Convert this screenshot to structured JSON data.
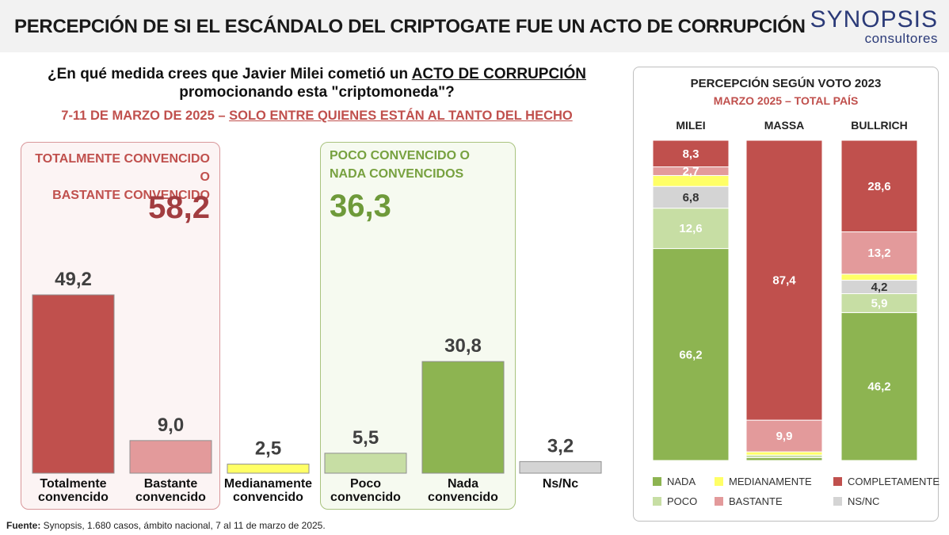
{
  "header": {
    "title": "PERCEPCIÓN DE SI EL ESCÁNDALO DEL CRIPTOGATE FUE UN ACTO DE CORRUPCIÓN",
    "logo_main": "SYNOPSIS",
    "logo_sub": "consultores"
  },
  "question": {
    "line1_pre": "¿En qué medida crees que Javier Milei cometió un ",
    "line1_emph": "ACTO DE CORRUPCIÓN",
    "line2": "promocionando esta \"criptomoneda\"?"
  },
  "subtitle": {
    "pre": "7-11 DE MARZO DE 2025 – ",
    "emph": "SOLO ENTRE QUIENES ESTÁN AL TANTO DEL HECHO"
  },
  "groups": {
    "convinced": {
      "label_line1": "TOTALMENTE CONVENCIDO O",
      "label_line2": "BASTANTE CONVENCIDO",
      "total": "58,2"
    },
    "not_convinced": {
      "label_line1": "POCO CONVENCIDO O",
      "label_line2": "NADA CONVENCIDOS",
      "total": "36,3"
    }
  },
  "source": {
    "label": "Fuente:",
    "text": " Synopsis, 1.680 casos, ámbito nacional, 7 al 11 de marzo de 2025."
  },
  "right_panel": {
    "title": "PERCEPCIÓN SEGÚN VOTO 2023",
    "subtitle": "MARZO 2025 – TOTAL PAÍS"
  },
  "colors": {
    "completamente": "#c0504d",
    "bastante": "#e39a9b",
    "medianamente": "#ffff66",
    "poco": "#c7dea4",
    "nada": "#8db451",
    "nsnc": "#d4d4d4"
  },
  "chart_data": [
    {
      "type": "bar",
      "title": "¿En qué medida crees que Javier Milei cometió un ACTO DE CORRUPCIÓN promocionando esta \"criptomoneda\"?",
      "categories": [
        [
          "Totalmente",
          "convencido"
        ],
        [
          "Bastante",
          "convencido"
        ],
        [
          "Medianamente",
          "convencido"
        ],
        [
          "Poco",
          "convencido"
        ],
        [
          "Nada",
          "convencido"
        ],
        [
          "Ns/Nc"
        ]
      ],
      "values": [
        49.2,
        9.0,
        2.5,
        5.5,
        30.8,
        3.2
      ],
      "labels": [
        "49,2",
        "9,0",
        "2,5",
        "5,5",
        "30,8",
        "3,2"
      ],
      "bar_colors": [
        "completamente",
        "bastante",
        "medianamente",
        "poco",
        "nada",
        "nsnc"
      ],
      "ylim": [
        0,
        50
      ]
    },
    {
      "type": "bar",
      "stacked": true,
      "orientation": "vertical",
      "title": "PERCEPCIÓN SEGÚN VOTO 2023",
      "categories": [
        "MILEI",
        "MASSA",
        "BULLRICH"
      ],
      "series": [
        {
          "name": "NADA",
          "key": "nada",
          "values": [
            66.2,
            0.9,
            46.2
          ],
          "labels": [
            "66,2",
            "",
            "46,2"
          ]
        },
        {
          "name": "POCO",
          "key": "poco",
          "values": [
            12.6,
            0.8,
            5.9
          ],
          "labels": [
            "12,6",
            "",
            "5,9"
          ]
        },
        {
          "name": "NS/NC",
          "key": "nsnc",
          "values": [
            6.8,
            0.0,
            4.2
          ],
          "labels": [
            "6,8",
            "",
            "4,2"
          ]
        },
        {
          "name": "MEDIANAMENTE",
          "key": "medianamente",
          "values": [
            3.4,
            1.0,
            1.9
          ],
          "labels": [
            "",
            "",
            ""
          ]
        },
        {
          "name": "BASTANTE",
          "key": "bastante",
          "values": [
            2.7,
            9.9,
            13.2
          ],
          "labels": [
            "2,7",
            "9,9",
            "13,2"
          ]
        },
        {
          "name": "COMPLETAMENTE",
          "key": "completamente",
          "values": [
            8.3,
            87.4,
            28.6
          ],
          "labels": [
            "8,3",
            "87,4",
            "28,6"
          ]
        }
      ],
      "ylim": [
        0,
        100
      ],
      "legend": [
        {
          "name": "NADA",
          "key": "nada"
        },
        {
          "name": "MEDIANAMENTE",
          "key": "medianamente"
        },
        {
          "name": "COMPLETAMENTE",
          "key": "completamente"
        },
        {
          "name": "POCO",
          "key": "poco"
        },
        {
          "name": "BASTANTE",
          "key": "bastante"
        },
        {
          "name": "NS/NC",
          "key": "nsnc"
        }
      ],
      "legend_position": "bottom"
    }
  ]
}
